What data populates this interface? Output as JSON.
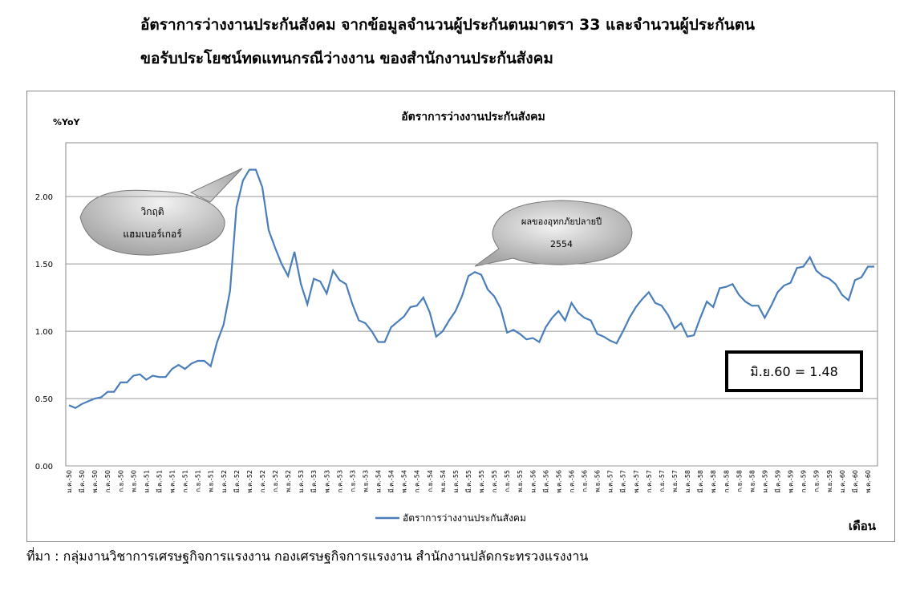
{
  "header": {
    "title_line1": "อัตราการว่างงานประกันสังคม จากข้อมูลจำนวนผู้ประกันตนมาตรา 33 และจำนวนผู้ประกันตน",
    "title_line2": "ขอรับประโยชน์ทดแทนกรณีว่างงาน ของสำนักงานประกันสังคม"
  },
  "chart_data": {
    "type": "line",
    "title": "อัตราการว่างงานประกันสังคม",
    "y_label": "%YoY",
    "x_label": "เดือน",
    "categories": [
      "ม.ค.-50",
      null,
      "มี.ค.-50",
      null,
      "พ.ค.-50",
      null,
      "ก.ค.-50",
      null,
      "ก.ย.-50",
      null,
      "พ.ย.-50",
      null,
      "ม.ค.-51",
      null,
      "มี.ค.-51",
      null,
      "พ.ค.-51",
      null,
      "ก.ค.-51",
      null,
      "ก.ย.-51",
      null,
      "พ.ย.-51",
      null,
      "ม.ค.-52",
      null,
      "มี.ค.-52",
      null,
      "พ.ค.-52",
      null,
      "ก.ค.-52",
      null,
      "ก.ย.-52",
      null,
      "พ.ย.-52",
      null,
      "ม.ค.-53",
      null,
      "มี.ค.-53",
      null,
      "พ.ค.-53",
      null,
      "ก.ค.-53",
      null,
      "ก.ย.-53",
      null,
      "พ.ย.-53",
      null,
      "ม.ค.-54",
      null,
      "มี.ค.-54",
      null,
      "พ.ค.-54",
      null,
      "ก.ค.-54",
      null,
      "ก.ย.-54",
      null,
      "พ.ย.-54",
      null,
      "ม.ค.-55",
      null,
      "มี.ค.-55",
      null,
      "พ.ค.-55",
      null,
      "ก.ค.-55",
      null,
      "ก.ย.-55",
      null,
      "พ.ย.-55",
      null,
      "ม.ค.-56",
      null,
      "มี.ค.-56",
      null,
      "พ.ค.-56",
      null,
      "ก.ค.-56",
      null,
      "ก.ย.-56",
      null,
      "พ.ย.-56",
      null,
      "ม.ค.-57",
      null,
      "มี.ค.-57",
      null,
      "พ.ค.-57",
      null,
      "ก.ค.-57",
      null,
      "ก.ย.-57",
      null,
      "พ.ย.-57",
      null,
      "ม.ค.-58",
      null,
      "มี.ค.-58",
      null,
      "พ.ค.-58",
      null,
      "ก.ค.-58",
      null,
      "ก.ย.-58",
      null,
      "พ.ย.-58",
      null,
      "ม.ค.-59",
      null,
      "มี.ค.-59",
      null,
      "พ.ค.-59",
      null,
      "ก.ค.-59",
      null,
      "ก.ย.-59",
      null,
      "พ.ย.-59",
      null,
      "ม.ค.-60",
      null,
      "มี.ค.-60",
      null,
      "พ.ค.-60",
      null
    ],
    "series": [
      {
        "name": "อัตราการว่างงานประกันสังคม",
        "color": "#4a7ebb",
        "values": [
          0.45,
          0.43,
          0.46,
          0.48,
          0.5,
          0.51,
          0.55,
          0.55,
          0.62,
          0.62,
          0.67,
          0.68,
          0.64,
          0.67,
          0.66,
          0.66,
          0.72,
          0.75,
          0.72,
          0.76,
          0.78,
          0.78,
          0.74,
          0.92,
          1.05,
          1.3,
          1.92,
          2.12,
          2.2,
          2.2,
          2.07,
          1.75,
          1.62,
          1.5,
          1.41,
          1.59,
          1.35,
          1.2,
          1.39,
          1.37,
          1.28,
          1.45,
          1.38,
          1.35,
          1.2,
          1.08,
          1.06,
          1.0,
          0.92,
          0.92,
          1.03,
          1.07,
          1.11,
          1.18,
          1.19,
          1.25,
          1.14,
          0.96,
          1.0,
          1.08,
          1.15,
          1.26,
          1.41,
          1.44,
          1.42,
          1.31,
          1.26,
          1.17,
          0.99,
          1.01,
          0.98,
          0.94,
          0.95,
          0.92,
          1.03,
          1.1,
          1.15,
          1.08,
          1.21,
          1.14,
          1.1,
          1.08,
          0.98,
          0.96,
          0.93,
          0.91,
          1.0,
          1.1,
          1.18,
          1.24,
          1.29,
          1.21,
          1.19,
          1.12,
          1.02,
          1.06,
          0.96,
          0.97,
          1.1,
          1.22,
          1.18,
          1.32,
          1.33,
          1.35,
          1.27,
          1.22,
          1.19,
          1.19,
          1.1,
          1.19,
          1.29,
          1.34,
          1.36,
          1.47,
          1.48,
          1.55,
          1.45,
          1.41,
          1.39,
          1.35,
          1.27,
          1.23,
          1.38,
          1.4,
          1.48,
          1.48
        ]
      }
    ],
    "ylim": [
      0,
      2.4
    ],
    "yticks": [
      {
        "value": 0,
        "label": "0.00"
      },
      {
        "value": 0.5,
        "label": "0.50"
      },
      {
        "value": 1,
        "label": "1.00"
      },
      {
        "value": 1.5,
        "label": "1.50"
      },
      {
        "value": 2,
        "label": "2.00"
      }
    ],
    "grid": true,
    "annotations": [
      {
        "lines": [
          "วิกฤติ",
          "แฮมเบอร์เกอร์"
        ]
      },
      {
        "lines": [
          "ผลของอุทกภัยปลายปี",
          "2554"
        ]
      }
    ],
    "value_box": "มิ.ย.60 = 1.48"
  },
  "footer": {
    "source": "ที่มา : กลุ่มงานวิชาการเศรษฐกิจการแรงงาน กองเศรษฐกิจการแรงงาน สำนักงานปลัดกระทรวงแรงงาน"
  }
}
